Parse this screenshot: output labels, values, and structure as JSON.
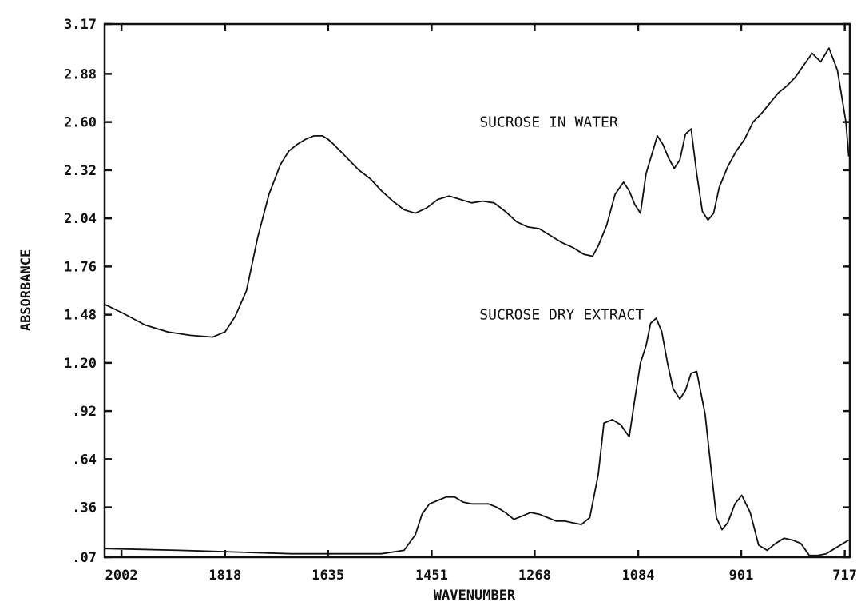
{
  "chart_data": {
    "type": "line",
    "xlabel": "WAVENUMBER",
    "ylabel": "ABSORBANCE",
    "xlim": [
      2032,
      708
    ],
    "ylim": [
      0.07,
      3.17
    ],
    "x_ticks": [
      2002,
      1818,
      1635,
      1451,
      1268,
      1084,
      901,
      717
    ],
    "x_tick_labels": [
      "2002",
      "1818",
      "1635",
      "1451",
      "1268",
      "1084",
      "901",
      "717"
    ],
    "y_ticks": [
      0.07,
      0.36,
      0.64,
      0.92,
      1.2,
      1.48,
      1.76,
      2.04,
      2.32,
      2.6,
      2.88,
      3.17
    ],
    "y_tick_labels": [
      ".07",
      ".36",
      ".64",
      ".92",
      "1.20",
      "1.48",
      "1.76",
      "2.04",
      "2.32",
      "2.60",
      "2.88",
      "3.17"
    ],
    "grid": false,
    "annotations": [
      {
        "text": "SUCROSE IN WATER",
        "x": 1366,
        "y": 2.6
      },
      {
        "text": "SUCROSE DRY EXTRACT",
        "x": 1366,
        "y": 1.48
      }
    ],
    "series": [
      {
        "x": [
          2032,
          2000,
          1960,
          1920,
          1880,
          1840,
          1818,
          1800,
          1780,
          1760,
          1740,
          1720,
          1705,
          1690,
          1675,
          1660,
          1645,
          1635,
          1625,
          1610,
          1595,
          1580,
          1560,
          1540,
          1520,
          1500,
          1480,
          1460,
          1440,
          1420,
          1400,
          1380,
          1360,
          1340,
          1320,
          1300,
          1280,
          1260,
          1240,
          1220,
          1200,
          1180,
          1165,
          1155,
          1140,
          1125,
          1110,
          1100,
          1090,
          1080,
          1070,
          1060,
          1050,
          1040,
          1030,
          1020,
          1010,
          1000,
          990,
          980,
          970,
          960,
          950,
          940,
          925,
          910,
          895,
          880,
          865,
          850,
          835,
          820,
          805,
          790,
          775,
          760,
          745,
          730,
          715,
          710
        ],
        "y": [
          1.54,
          1.49,
          1.42,
          1.38,
          1.36,
          1.35,
          1.38,
          1.47,
          1.62,
          1.93,
          2.18,
          2.35,
          2.43,
          2.47,
          2.5,
          2.52,
          2.52,
          2.5,
          2.47,
          2.42,
          2.37,
          2.32,
          2.27,
          2.2,
          2.14,
          2.09,
          2.07,
          2.1,
          2.15,
          2.17,
          2.15,
          2.13,
          2.14,
          2.13,
          2.08,
          2.02,
          1.99,
          1.98,
          1.94,
          1.9,
          1.87,
          1.83,
          1.82,
          1.88,
          2.0,
          2.18,
          2.25,
          2.2,
          2.12,
          2.07,
          2.3,
          2.41,
          2.52,
          2.47,
          2.39,
          2.33,
          2.38,
          2.53,
          2.56,
          2.3,
          2.08,
          2.03,
          2.07,
          2.22,
          2.34,
          2.43,
          2.5,
          2.6,
          2.65,
          2.71,
          2.77,
          2.81,
          2.86,
          2.93,
          3.0,
          2.95,
          3.03,
          2.9,
          2.6,
          2.4
        ]
      },
      {
        "x": [
          2032,
          1900,
          1800,
          1700,
          1600,
          1540,
          1500,
          1480,
          1468,
          1455,
          1440,
          1425,
          1410,
          1395,
          1380,
          1365,
          1350,
          1335,
          1320,
          1305,
          1290,
          1275,
          1260,
          1245,
          1230,
          1215,
          1200,
          1185,
          1170,
          1155,
          1145,
          1130,
          1115,
          1100,
          1090,
          1080,
          1070,
          1062,
          1052,
          1042,
          1032,
          1022,
          1010,
          1000,
          990,
          980,
          965,
          955,
          945,
          935,
          925,
          912,
          900,
          885,
          870,
          855,
          840,
          825,
          810,
          795,
          780,
          765,
          750,
          735,
          720,
          710
        ],
        "y": [
          0.12,
          0.11,
          0.1,
          0.09,
          0.09,
          0.09,
          0.11,
          0.2,
          0.32,
          0.38,
          0.4,
          0.42,
          0.42,
          0.39,
          0.38,
          0.38,
          0.38,
          0.36,
          0.33,
          0.29,
          0.31,
          0.33,
          0.32,
          0.3,
          0.28,
          0.28,
          0.27,
          0.26,
          0.3,
          0.55,
          0.85,
          0.87,
          0.84,
          0.77,
          0.99,
          1.2,
          1.3,
          1.43,
          1.46,
          1.38,
          1.2,
          1.05,
          0.99,
          1.04,
          1.14,
          1.15,
          0.9,
          0.6,
          0.3,
          0.23,
          0.27,
          0.38,
          0.43,
          0.33,
          0.14,
          0.11,
          0.15,
          0.18,
          0.17,
          0.15,
          0.08,
          0.08,
          0.09,
          0.12,
          0.15,
          0.17
        ]
      }
    ]
  }
}
